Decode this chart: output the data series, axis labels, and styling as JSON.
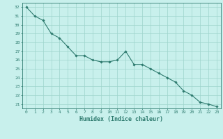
{
  "x": [
    0,
    1,
    2,
    3,
    4,
    5,
    6,
    7,
    8,
    9,
    10,
    11,
    12,
    13,
    14,
    15,
    16,
    17,
    18,
    19,
    20,
    21,
    22,
    23
  ],
  "y": [
    32.0,
    31.0,
    30.5,
    29.0,
    28.5,
    27.5,
    26.5,
    26.5,
    26.0,
    25.8,
    25.8,
    26.0,
    27.0,
    25.5,
    25.5,
    25.0,
    24.5,
    24.0,
    23.5,
    22.5,
    22.0,
    21.2,
    21.0,
    20.7
  ],
  "line_color": "#2d7a6e",
  "marker": "D",
  "marker_size": 1.8,
  "bg_color": "#c8f0ec",
  "grid_color": "#9ed4cc",
  "tick_color": "#2d7a6e",
  "xlabel": "Humidex (Indice chaleur)",
  "xlabel_fontsize": 6.0,
  "ylabel_ticks": [
    21,
    22,
    23,
    24,
    25,
    26,
    27,
    28,
    29,
    30,
    31,
    32
  ],
  "xlim": [
    -0.5,
    23.5
  ],
  "ylim": [
    20.5,
    32.5
  ]
}
